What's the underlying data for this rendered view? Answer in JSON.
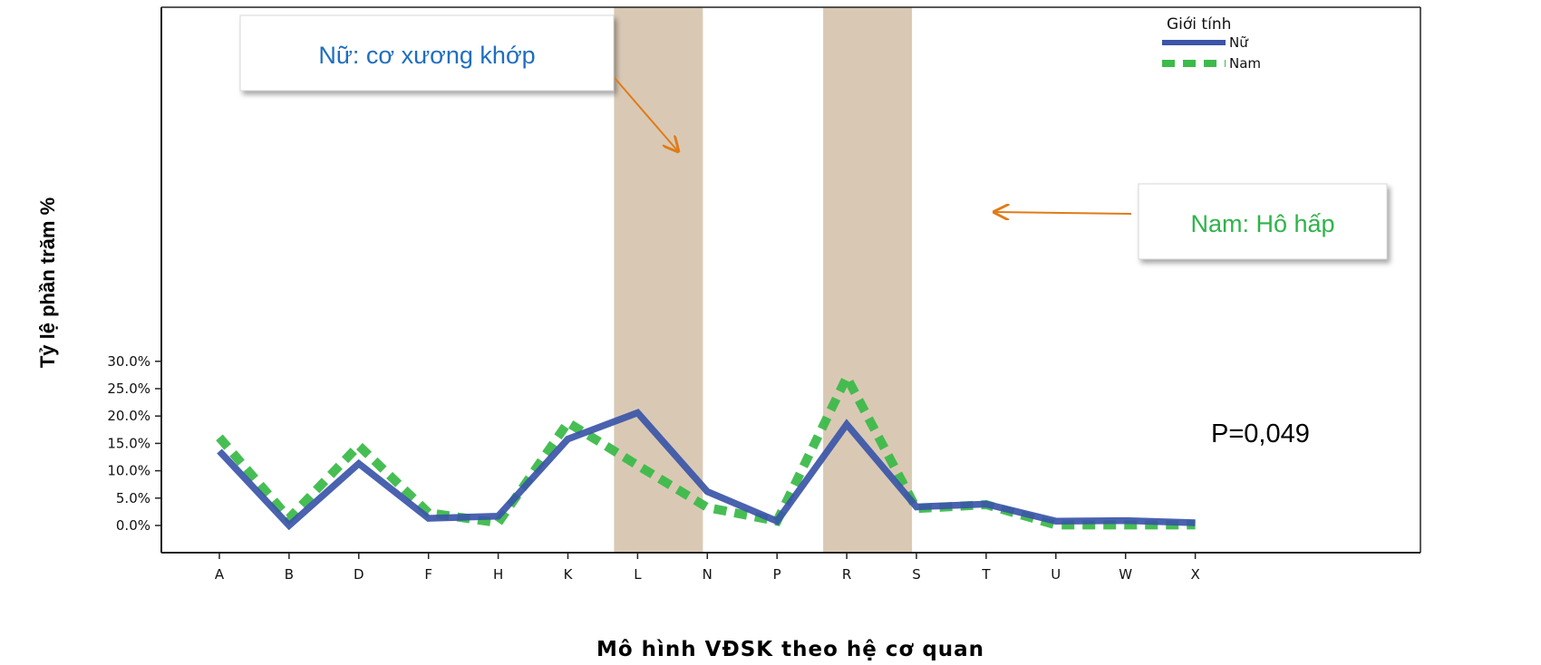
{
  "chart_data": {
    "type": "line",
    "xlabel": "Mô hình VĐSK theo hệ cơ quan",
    "ylabel": "Tỷ lệ phần trăm %",
    "categories": [
      "A",
      "B",
      "D",
      "F",
      "H",
      "K",
      "L",
      "N",
      "P",
      "R",
      "S",
      "T",
      "U",
      "W",
      "X"
    ],
    "yticks": [
      "0.0%",
      "5.0%",
      "10.0%",
      "15.0%",
      "20.0%",
      "25.0%",
      "30.0%"
    ],
    "ylim": [
      0,
      30
    ],
    "legend": {
      "title": "Giới tính",
      "placement": "top-right"
    },
    "series": [
      {
        "name": "Nữ",
        "color": "#3b55a8",
        "style": "solid",
        "values": [
          13.6,
          0.0,
          11.3,
          1.3,
          1.7,
          15.8,
          20.6,
          6.2,
          0.8,
          18.5,
          3.4,
          3.9,
          0.8,
          0.9,
          0.5
        ]
      },
      {
        "name": "Nam",
        "color": "#3dbb4a",
        "style": "dashed",
        "values": [
          16.1,
          1.3,
          14.6,
          2.3,
          0.5,
          18.8,
          11.0,
          3.3,
          0.8,
          27.1,
          3.1,
          3.8,
          0.1,
          0.1,
          0.1
        ]
      }
    ],
    "highlight_bands": [
      {
        "category": "L",
        "color": "#d2bfa7"
      },
      {
        "category": "R",
        "color": "#d2bfa7"
      }
    ],
    "annotations": [
      {
        "text": "Nữ: cơ xương khớp",
        "color": "#1f6ebf",
        "points_to": "L"
      },
      {
        "text": "Nam: Hô hấp",
        "color": "#2fb34a",
        "points_to": "R"
      }
    ],
    "pvalue": "P=0,049"
  }
}
